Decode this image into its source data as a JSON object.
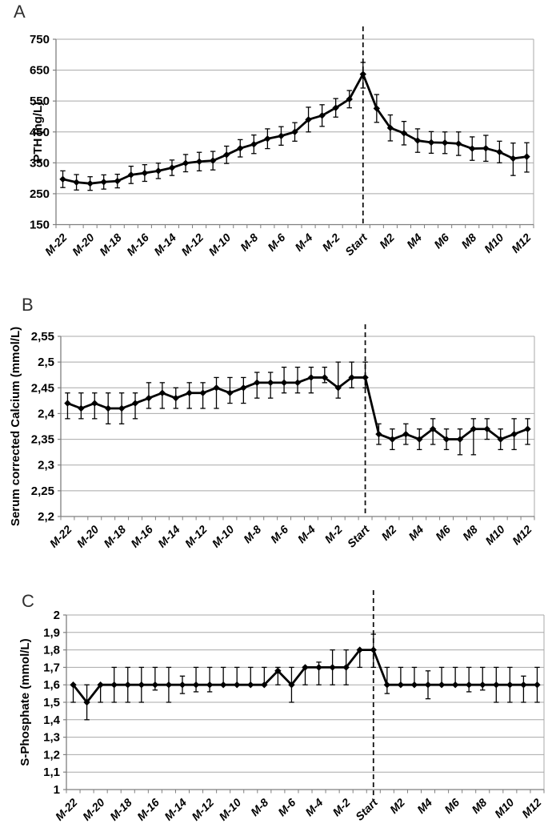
{
  "figure": {
    "background": "#ffffff",
    "text_color": "#000000",
    "grid_color": "#a8a8a8",
    "axis_color": "#7f7f7f",
    "series_color": "#000000",
    "dashed_line_color": "#111111"
  },
  "chart_data": [
    {
      "type": "line",
      "panel": "A",
      "ylabel": "PTH (ng/L)",
      "xlabel": "",
      "ylim": [
        150,
        750
      ],
      "ytick_labels": [
        "750",
        "650",
        "550",
        "450",
        "350",
        "250",
        "150"
      ],
      "ytick_values": [
        750,
        650,
        550,
        450,
        350,
        250,
        150
      ],
      "grid": true,
      "legend": "none",
      "marker": "diamond",
      "vline_at": "Start",
      "vline_style": "dashed",
      "categories": [
        "M-22",
        "M-21",
        "M-20",
        "M-19",
        "M-18",
        "M-17",
        "M-16",
        "M-15",
        "M-14",
        "M-13",
        "M-12",
        "M-11",
        "M-10",
        "M-9",
        "M-8",
        "M-7",
        "M-6",
        "M-5",
        "M-4",
        "M-3",
        "M-2",
        "M-1",
        "Start",
        "M1",
        "M2",
        "M3",
        "M4",
        "M5",
        "M6",
        "M7",
        "M8",
        "M9",
        "M10",
        "M11",
        "M12"
      ],
      "xtick_shown": [
        "M-22",
        "M-20",
        "M-18",
        "M-16",
        "M-14",
        "M-12",
        "M-10",
        "M-8",
        "M-6",
        "M-4",
        "M-2",
        "Start",
        "M2",
        "M4",
        "M6",
        "M8",
        "M10",
        "M12"
      ],
      "series": [
        {
          "name": "PTH",
          "values": [
            297,
            287,
            283,
            288,
            291,
            311,
            317,
            324,
            334,
            349,
            354,
            357,
            376,
            397,
            410,
            428,
            437,
            450,
            490,
            503,
            528,
            556,
            637,
            526,
            463,
            446,
            422,
            416,
            415,
            412,
            396,
            397,
            385,
            364,
            370
          ],
          "err_up": [
            27,
            25,
            22,
            23,
            22,
            28,
            27,
            25,
            25,
            28,
            30,
            30,
            28,
            28,
            30,
            32,
            30,
            30,
            40,
            35,
            30,
            28,
            38,
            45,
            42,
            38,
            38,
            35,
            35,
            38,
            38,
            42,
            35,
            50,
            45
          ],
          "err_dn": [
            27,
            25,
            22,
            23,
            22,
            28,
            27,
            25,
            25,
            28,
            30,
            30,
            28,
            28,
            30,
            32,
            30,
            30,
            40,
            35,
            30,
            28,
            45,
            45,
            42,
            38,
            38,
            35,
            35,
            38,
            38,
            42,
            35,
            55,
            50
          ]
        }
      ]
    },
    {
      "type": "line",
      "panel": "B",
      "ylabel": "Serum corrected Calcium (mmol/L)",
      "xlabel": "",
      "ylim": [
        2.2,
        2.55
      ],
      "ytick_labels": [
        "2,55",
        "2,5",
        "2,45",
        "2,4",
        "2,35",
        "2,3",
        "2,25",
        "2,2"
      ],
      "ytick_values": [
        2.55,
        2.5,
        2.45,
        2.4,
        2.35,
        2.3,
        2.25,
        2.2
      ],
      "grid": true,
      "legend": "none",
      "marker": "diamond",
      "vline_at": "Start",
      "vline_style": "dashed",
      "categories": [
        "M-22",
        "M-21",
        "M-20",
        "M-19",
        "M-18",
        "M-17",
        "M-16",
        "M-15",
        "M-14",
        "M-13",
        "M-12",
        "M-11",
        "M-10",
        "M-9",
        "M-8",
        "M-7",
        "M-6",
        "M-5",
        "M-4",
        "M-3",
        "M-2",
        "M-1",
        "Start",
        "M1",
        "M2",
        "M3",
        "M4",
        "M5",
        "M6",
        "M7",
        "M8",
        "M9",
        "M10",
        "M11",
        "M12"
      ],
      "xtick_shown": [
        "M-22",
        "M-20",
        "M-18",
        "M-16",
        "M-14",
        "M-12",
        "M-10",
        "M-8",
        "M-6",
        "M-4",
        "M-2",
        "Start",
        "M2",
        "M4",
        "M6",
        "M8",
        "M10",
        "M12"
      ],
      "series": [
        {
          "name": "Serum corrected Calcium",
          "values": [
            2.42,
            2.41,
            2.42,
            2.41,
            2.41,
            2.42,
            2.43,
            2.44,
            2.43,
            2.44,
            2.44,
            2.45,
            2.44,
            2.45,
            2.46,
            2.46,
            2.46,
            2.46,
            2.47,
            2.47,
            2.45,
            2.47,
            2.47,
            2.36,
            2.35,
            2.36,
            2.35,
            2.37,
            2.35,
            2.35,
            2.37,
            2.37,
            2.35,
            2.36,
            2.37
          ],
          "err_up": [
            0.02,
            0.03,
            0.02,
            0.03,
            0.03,
            0.02,
            0.03,
            0.02,
            0.02,
            0.02,
            0.02,
            0.02,
            0.03,
            0.02,
            0.02,
            0.02,
            0.03,
            0.03,
            0.02,
            0.02,
            0.05,
            0.03,
            0.03,
            0.02,
            0.02,
            0.02,
            0.02,
            0.02,
            0.02,
            0.02,
            0.02,
            0.02,
            0.02,
            0.03,
            0.02
          ],
          "err_dn": [
            0.03,
            0.02,
            0.03,
            0.03,
            0.03,
            0.03,
            0.02,
            0.03,
            0.02,
            0.03,
            0.03,
            0.04,
            0.02,
            0.03,
            0.03,
            0.03,
            0.02,
            0.02,
            0.03,
            0.01,
            0.02,
            0.02,
            0.02,
            0.02,
            0.02,
            0.02,
            0.02,
            0.03,
            0.02,
            0.03,
            0.05,
            0.02,
            0.02,
            0.03,
            0.03
          ]
        }
      ]
    },
    {
      "type": "line",
      "panel": "C",
      "ylabel": "S-Phosphate (mmol/L)",
      "xlabel": "",
      "ylim": [
        1,
        2
      ],
      "ytick_labels": [
        "2",
        "1,9",
        "1,8",
        "1,7",
        "1,6",
        "1,5",
        "1,4",
        "1,3",
        "1,2",
        "1,1",
        "1"
      ],
      "ytick_values": [
        2,
        1.9,
        1.8,
        1.7,
        1.6,
        1.5,
        1.4,
        1.3,
        1.2,
        1.1,
        1
      ],
      "grid": true,
      "legend": "none",
      "marker": "diamond",
      "vline_at": "Start",
      "vline_style": "dashed",
      "categories": [
        "M-22",
        "M-21",
        "M-20",
        "M-19",
        "M-18",
        "M-17",
        "M-16",
        "M-15",
        "M-14",
        "M-13",
        "M-12",
        "M-11",
        "M-10",
        "M-9",
        "M-8",
        "M-7",
        "M-6",
        "M-5",
        "M-4",
        "M-3",
        "M-2",
        "M-1",
        "Start",
        "M1",
        "M2",
        "M3",
        "M4",
        "M5",
        "M6",
        "M7",
        "M8",
        "M9",
        "M10",
        "M11",
        "M12"
      ],
      "xtick_shown": [
        "M-22",
        "M-20",
        "M-18",
        "M-16",
        "M-14",
        "M-12",
        "M-10",
        "M-8",
        "M-6",
        "M-4",
        "M-2",
        "Start",
        "M2",
        "M4",
        "M6",
        "M8",
        "M10",
        "M12"
      ],
      "series": [
        {
          "name": "S-Phosphate",
          "values": [
            1.6,
            1.5,
            1.6,
            1.6,
            1.6,
            1.6,
            1.6,
            1.6,
            1.6,
            1.6,
            1.6,
            1.6,
            1.6,
            1.6,
            1.6,
            1.68,
            1.6,
            1.7,
            1.7,
            1.7,
            1.7,
            1.8,
            1.8,
            1.6,
            1.6,
            1.6,
            1.6,
            1.6,
            1.6,
            1.6,
            1.6,
            1.6,
            1.6,
            1.6,
            1.6
          ],
          "err_up": [
            0,
            0.1,
            0,
            0.1,
            0.1,
            0.1,
            0.1,
            0.1,
            0.05,
            0.1,
            0.1,
            0.1,
            0.1,
            0.1,
            0.1,
            0.02,
            0.1,
            0,
            0.03,
            0.1,
            0.1,
            0,
            0.09,
            0.1,
            0.1,
            0.1,
            0.08,
            0.1,
            0.1,
            0.1,
            0.1,
            0.1,
            0.1,
            0.05,
            0.1
          ],
          "err_dn": [
            0.1,
            0.1,
            0.1,
            0.1,
            0.1,
            0.1,
            0.03,
            0.1,
            0.05,
            0.04,
            0.04,
            0,
            0,
            0,
            0,
            0.08,
            0.1,
            0.1,
            0.1,
            0.1,
            0.1,
            0.1,
            0.1,
            0.05,
            0,
            0,
            0.08,
            0,
            0,
            0.04,
            0.03,
            0.1,
            0.1,
            0.1,
            0.1
          ]
        }
      ]
    }
  ]
}
